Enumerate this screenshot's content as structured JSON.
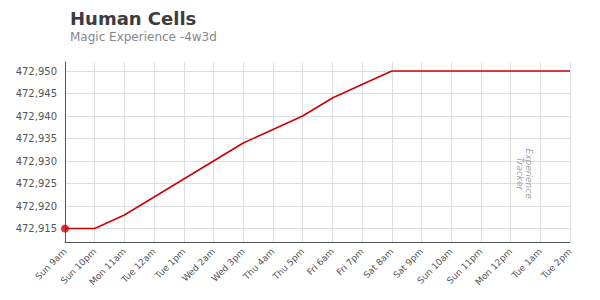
{
  "chart_data": {
    "type": "line",
    "title": "Human Cells",
    "subtitle": "Magic Experience -4w3d",
    "annotation": "Experience\nTracker",
    "categories": [
      "Sun 9am",
      "Sun 10pm",
      "Mon 11am",
      "Tue 12am",
      "Tue 1pm",
      "Wed 2am",
      "Wed 3pm",
      "Thu 4am",
      "Thu 5pm",
      "Fri 6am",
      "Fri 7pm",
      "Sat 8am",
      "Sat 9pm",
      "Sun 10am",
      "Sun 11pm",
      "Mon 12pm",
      "Tue 1am",
      "Tue 2pm"
    ],
    "values": [
      472915,
      472915,
      472918,
      472922,
      472926,
      472930,
      472934,
      472937,
      472940,
      472944,
      472947,
      472950,
      472950,
      472950,
      472950,
      472950,
      472950,
      472950
    ],
    "color": "#cc0000",
    "dot": {
      "category": "Sun 9am",
      "value": 472915,
      "color": "#cc0000"
    },
    "ylim": [
      472912,
      472952
    ],
    "yticks": [
      {
        "value": 472915,
        "label": "472,915"
      },
      {
        "value": 472920,
        "label": "472,920"
      },
      {
        "value": 472925,
        "label": "472,925"
      },
      {
        "value": 472930,
        "label": "472,930"
      },
      {
        "value": 472935,
        "label": "472,935"
      },
      {
        "value": 472940,
        "label": "472,940"
      },
      {
        "value": 472945,
        "label": "472,945"
      },
      {
        "value": 472950,
        "label": "472,950"
      }
    ],
    "grid": true
  }
}
